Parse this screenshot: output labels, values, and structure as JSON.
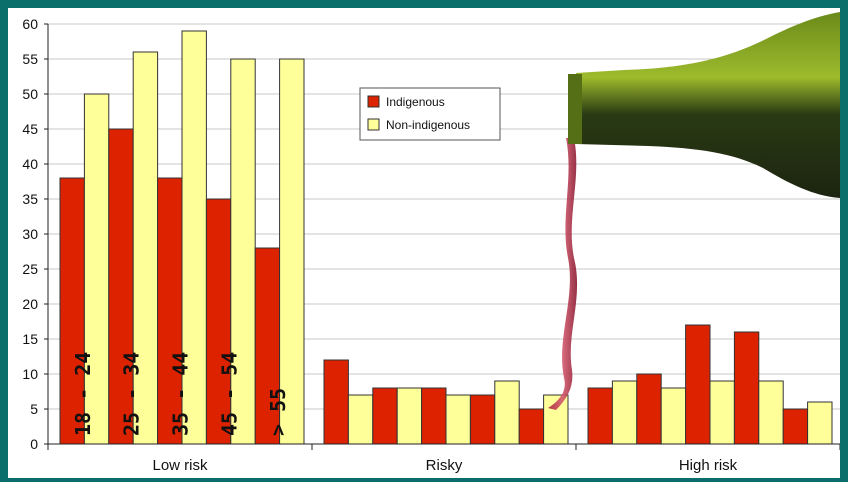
{
  "chart_data": {
    "type": "bar",
    "title": "",
    "xlabel": "",
    "ylabel": "",
    "ylim": [
      0,
      60
    ],
    "yticks": [
      0,
      5,
      10,
      15,
      20,
      25,
      30,
      35,
      40,
      45,
      50,
      55,
      60
    ],
    "grid": true,
    "legend_placement": "top-center",
    "categories": [
      "Low risk",
      "Risky",
      "High risk"
    ],
    "age_groups": [
      "18 - 24",
      "25 - 34",
      "35 - 44",
      "45 - 54",
      "> 55"
    ],
    "series": [
      {
        "name": "Indigenous",
        "color": "#dd2200",
        "values": [
          [
            38,
            45,
            38,
            35,
            28
          ],
          [
            12,
            8,
            8,
            7,
            5
          ],
          [
            8,
            10,
            17,
            16,
            5
          ]
        ]
      },
      {
        "name": "Non-indigenous",
        "color": "#ffff99",
        "values": [
          [
            50,
            56,
            59,
            55,
            55
          ],
          [
            7,
            8,
            7,
            9,
            7
          ],
          [
            9,
            8,
            9,
            9,
            6
          ]
        ]
      }
    ]
  }
}
